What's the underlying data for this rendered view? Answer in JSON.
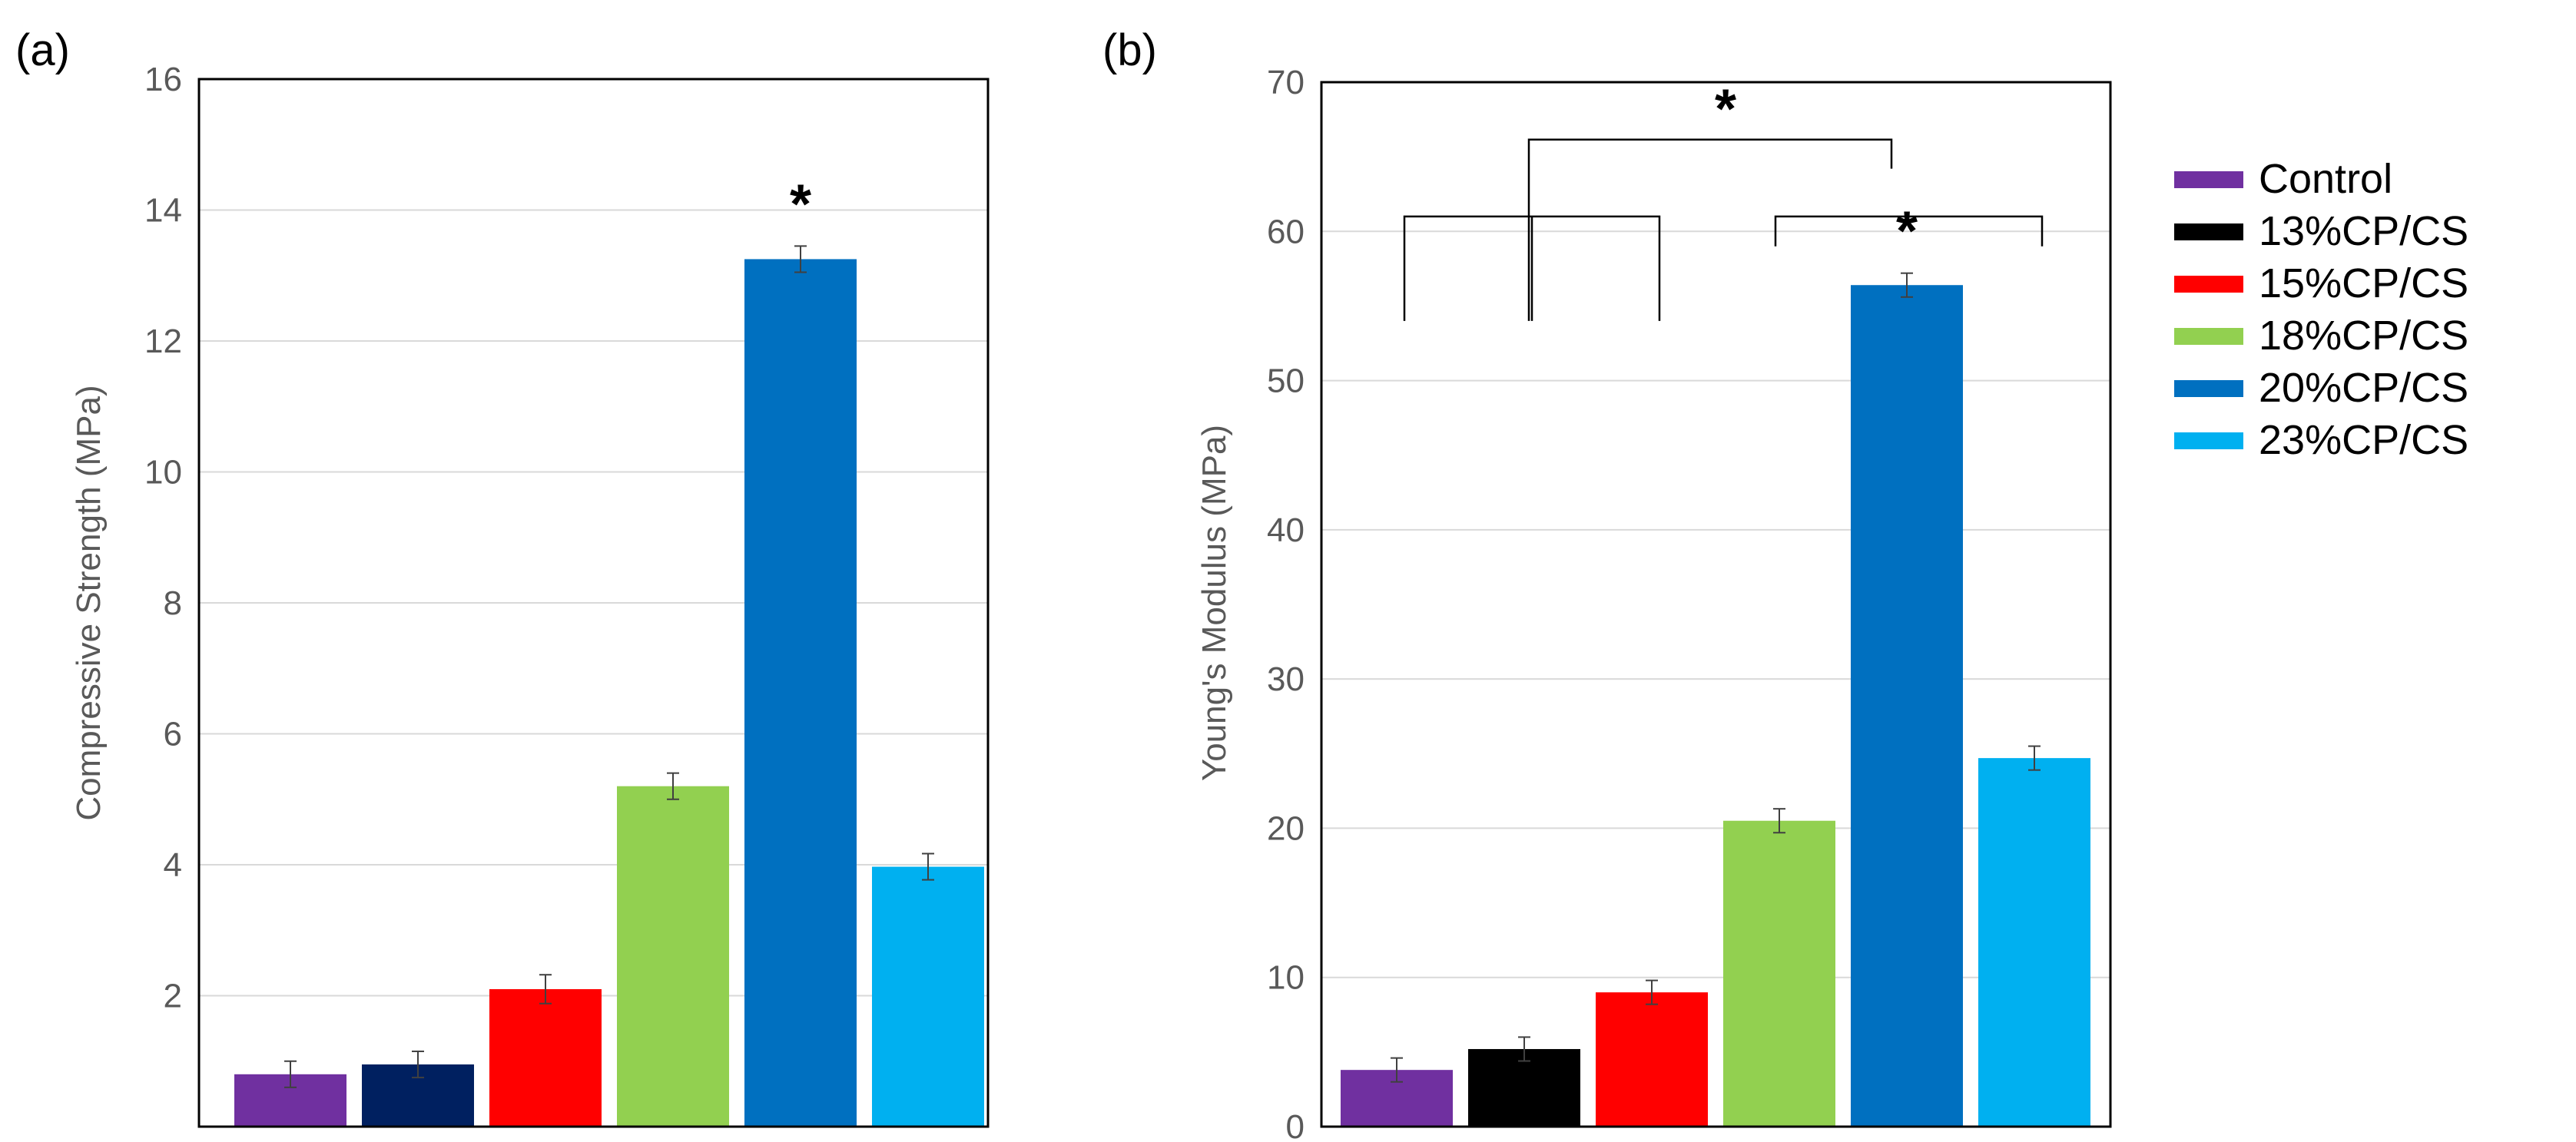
{
  "chart_data": [
    {
      "panel_label": "(a)",
      "type": "bar",
      "ylabel": "Compressive Strength (MPa)",
      "ylim": [
        0,
        16
      ],
      "yticks": [
        2,
        4,
        6,
        8,
        10,
        12,
        14,
        16
      ],
      "grid": true,
      "categories": [
        "Control",
        "13%CP/CS",
        "15%CP/CS",
        "18%CP/CS",
        "20%CP/CS",
        "23%CP/CS"
      ],
      "values": [
        0.8,
        0.95,
        2.1,
        5.2,
        13.25,
        3.97
      ],
      "errors": [
        0.2,
        0.2,
        0.22,
        0.2,
        0.2,
        0.2
      ],
      "colors": [
        "#7030a0",
        "#002060",
        "#ff0000",
        "#92d050",
        "#0070c0",
        "#00b0f0"
      ],
      "annotations": [
        {
          "category_index": 4,
          "text": "*"
        }
      ]
    },
    {
      "panel_label": "(b)",
      "type": "bar",
      "ylabel": "Young's Modulus (MPa)",
      "ylim": [
        0,
        70
      ],
      "yticks": [
        0,
        10,
        20,
        30,
        40,
        50,
        60,
        70
      ],
      "grid": true,
      "categories": [
        "Control",
        "13%CP/CS",
        "15%CP/CS",
        "18%CP/CS",
        "20%CP/CS",
        "23%CP/CS"
      ],
      "values": [
        3.8,
        5.2,
        9.0,
        20.5,
        56.4,
        24.7
      ],
      "errors": [
        0.8,
        0.8,
        0.8,
        0.8,
        0.8,
        0.8
      ],
      "colors": [
        "#7030a0",
        "#000000",
        "#ff0000",
        "#92d050",
        "#0070c0",
        "#00b0f0"
      ],
      "annotations": [
        {
          "category_index": 4,
          "text": "*"
        }
      ],
      "brackets": [
        {
          "from": 0,
          "to": 2,
          "y": 61,
          "drop_to": 54,
          "inner_tick": 1
        },
        {
          "from": 3,
          "to": 5,
          "y": 57.5,
          "drop_to": 59
        },
        {
          "from": 1,
          "to": 4,
          "y": 66,
          "drop_left_to": 54,
          "drop_right_to": 64.2,
          "label": "*"
        }
      ]
    }
  ],
  "legend": {
    "position": "right",
    "items": [
      {
        "label": "Control",
        "color": "#7030a0"
      },
      {
        "label": "13%CP/CS",
        "color": "#000000"
      },
      {
        "label": "15%CP/CS",
        "color": "#ff0000"
      },
      {
        "label": "18%CP/CS",
        "color": "#92d050"
      },
      {
        "label": "20%CP/CS",
        "color": "#0070c0"
      },
      {
        "label": "23%CP/CS",
        "color": "#00b0f0"
      }
    ]
  }
}
